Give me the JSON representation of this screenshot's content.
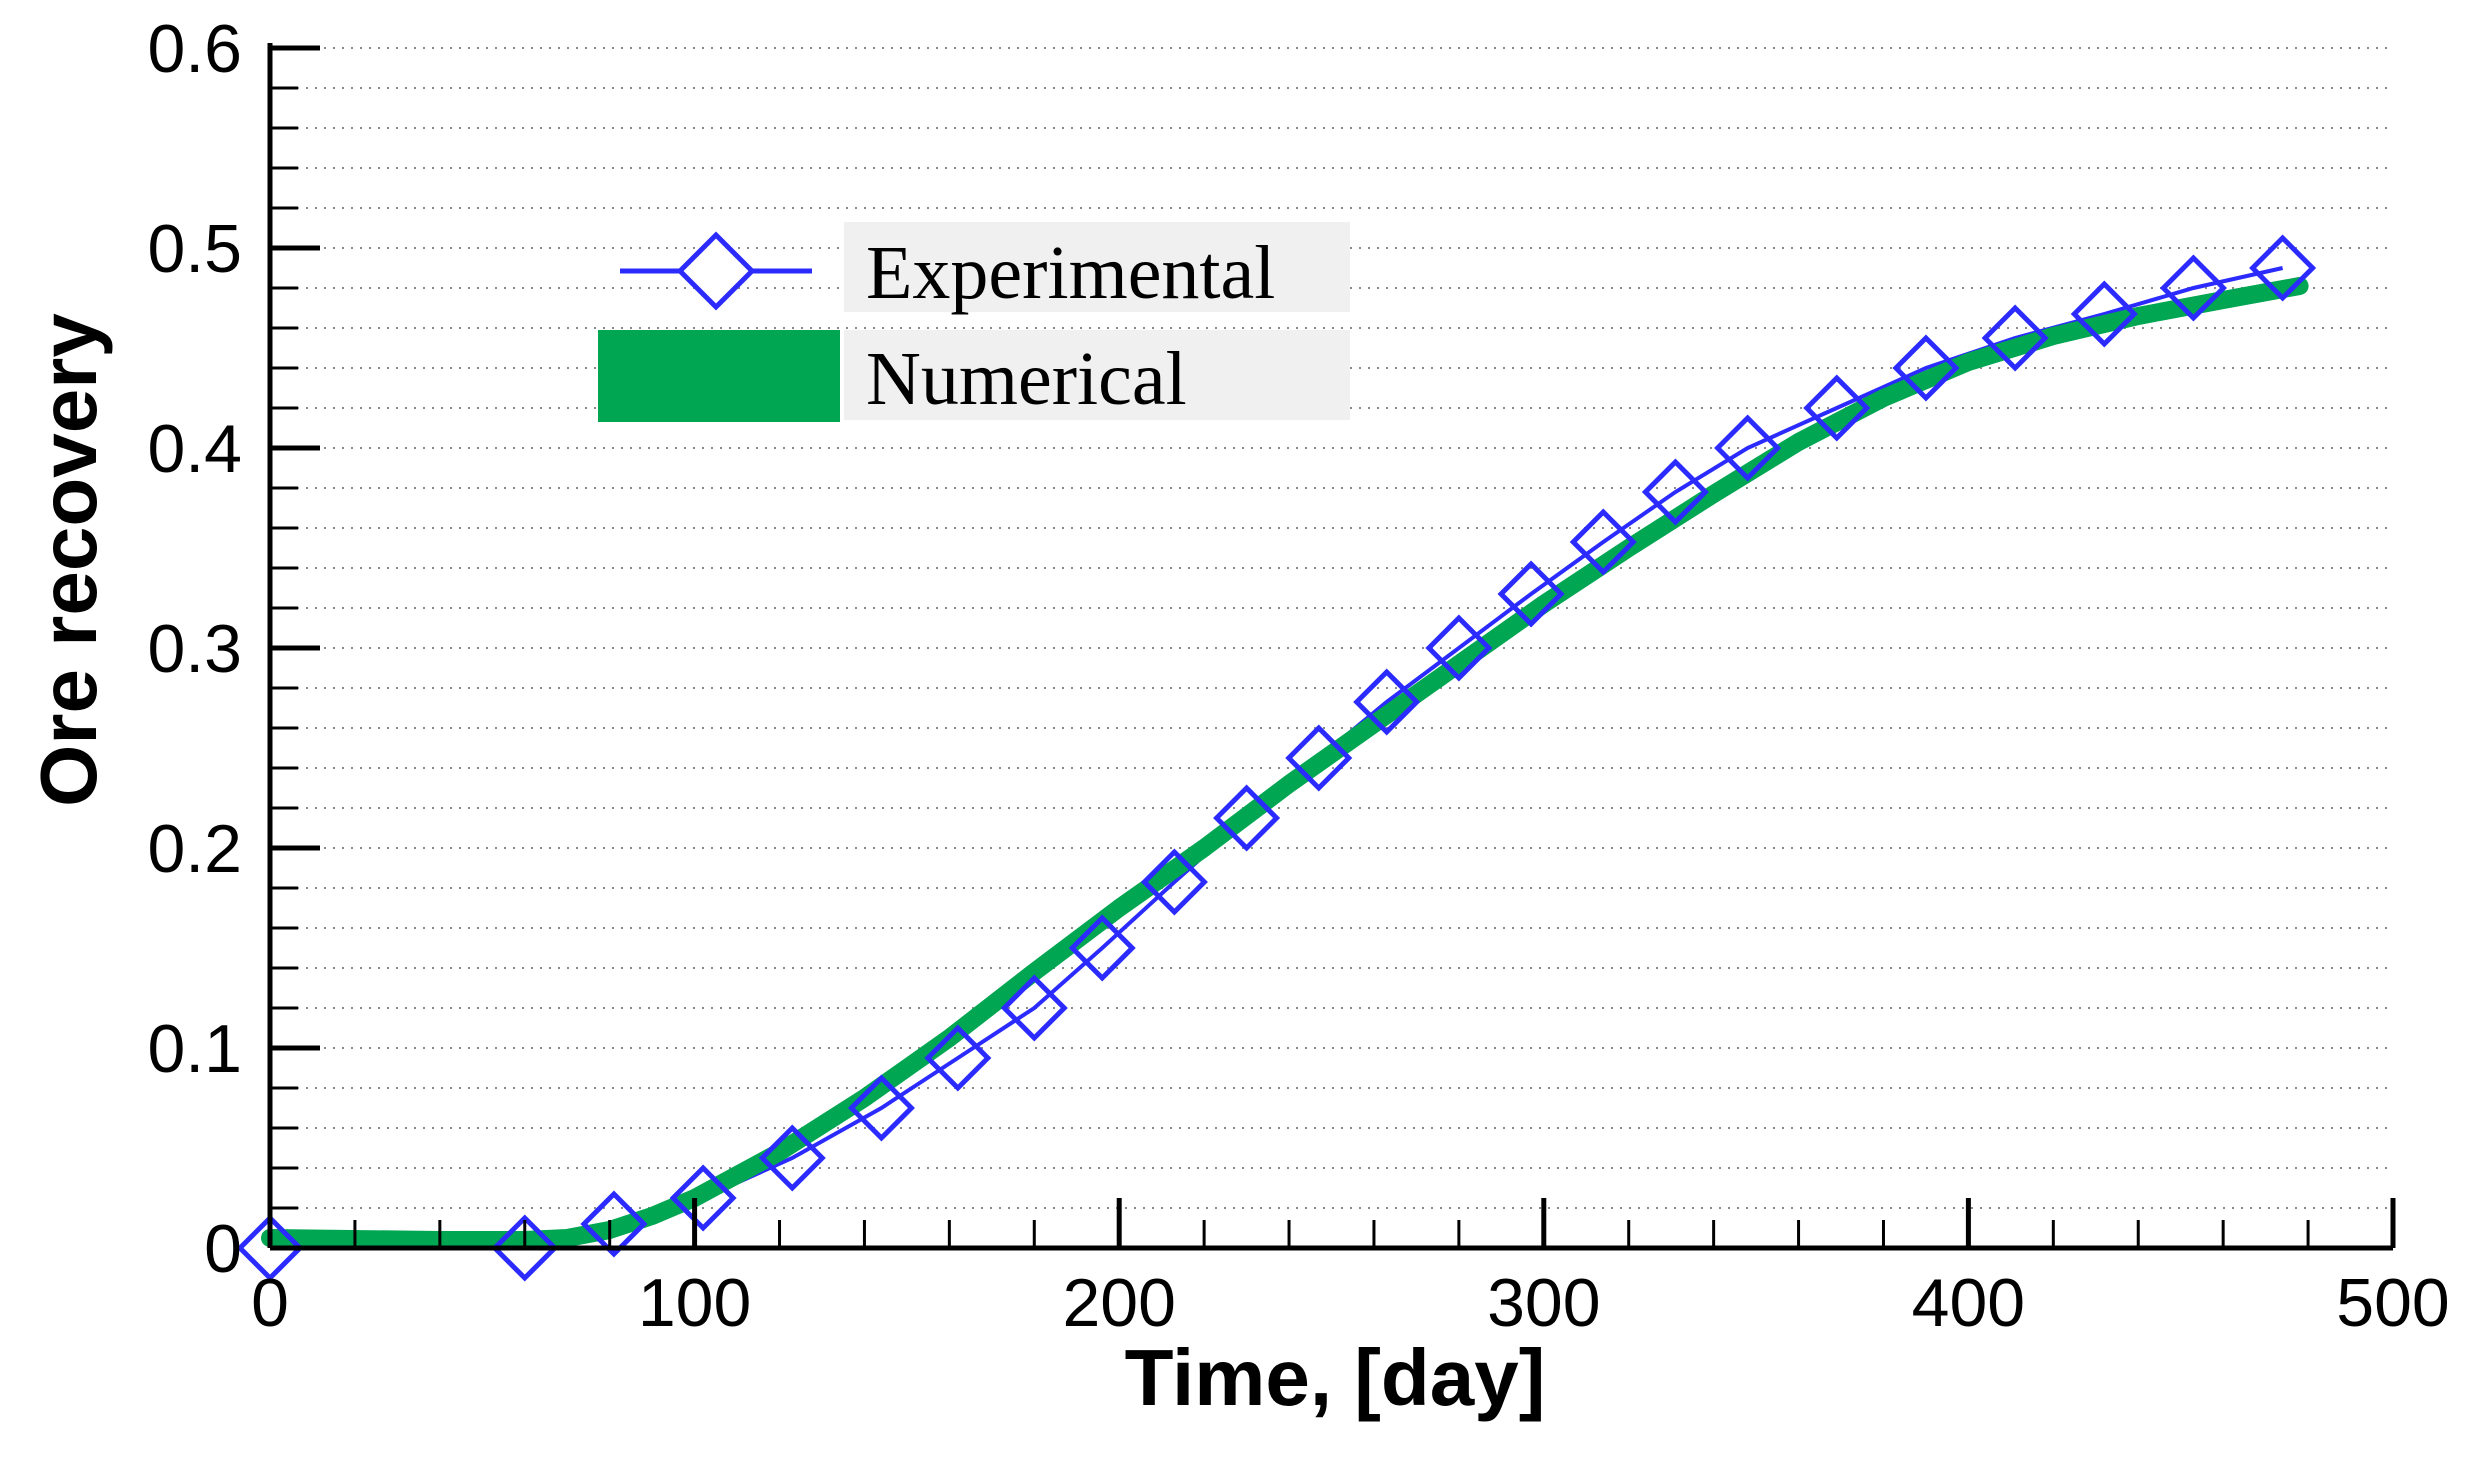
{
  "chart_data": {
    "type": "line",
    "title": "",
    "xlabel": "Time, [day]",
    "ylabel": "Ore recovery",
    "xlim": [
      0,
      500
    ],
    "ylim": [
      0,
      0.6
    ],
    "x_ticks": [
      0,
      100,
      200,
      300,
      400,
      500
    ],
    "x_tick_labels": [
      "0",
      "100",
      "200",
      "300",
      "400",
      "500"
    ],
    "y_ticks": [
      0,
      0.1,
      0.2,
      0.3,
      0.4,
      0.5,
      0.6
    ],
    "y_tick_labels": [
      "0",
      "0.1",
      "0.2",
      "0.3",
      "0.4",
      "0.5",
      "0.6"
    ],
    "grid": "horizontal dotted",
    "legend_position": "top-left",
    "series": [
      {
        "name": "Experimental",
        "style": "line-with-diamond-markers",
        "color": "#2b2bff",
        "x": [
          0,
          60,
          81,
          102,
          123,
          144,
          162,
          180,
          196,
          213,
          230,
          247,
          263,
          280,
          297,
          314,
          331,
          348,
          369,
          390,
          411,
          432,
          453,
          474
        ],
        "y": [
          0.0,
          0.0,
          0.012,
          0.025,
          0.045,
          0.07,
          0.095,
          0.12,
          0.15,
          0.183,
          0.215,
          0.245,
          0.273,
          0.3,
          0.327,
          0.353,
          0.378,
          0.4,
          0.42,
          0.44,
          0.455,
          0.467,
          0.48,
          0.49
        ]
      },
      {
        "name": "Numerical",
        "style": "thick-line",
        "color": "#00a651",
        "x": [
          0,
          40,
          60,
          70,
          80,
          90,
          100,
          120,
          140,
          160,
          180,
          200,
          220,
          240,
          260,
          280,
          300,
          320,
          340,
          360,
          380,
          400,
          420,
          440,
          460,
          478
        ],
        "y": [
          0.005,
          0.004,
          0.004,
          0.005,
          0.009,
          0.016,
          0.025,
          0.048,
          0.075,
          0.105,
          0.138,
          0.17,
          0.2,
          0.232,
          0.262,
          0.292,
          0.322,
          0.35,
          0.377,
          0.403,
          0.425,
          0.443,
          0.456,
          0.466,
          0.474,
          0.481
        ]
      }
    ]
  }
}
